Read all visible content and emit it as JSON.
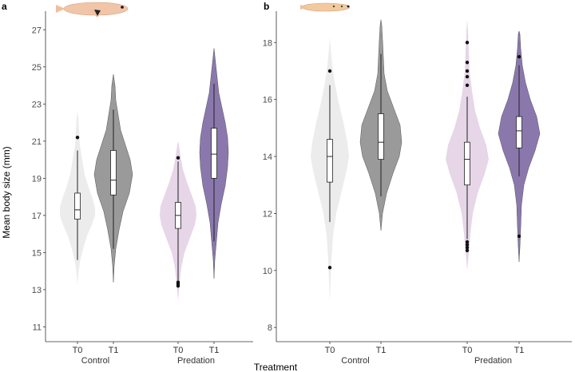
{
  "figure": {
    "ylabel": "Mean body size (mm)",
    "xlabel": "Treatment"
  },
  "colors": {
    "control_t0": "#ececec",
    "control_t1": "#9a9a9a",
    "predation_t0": "#e6d6e8",
    "predation_t1": "#8a78ad",
    "axis": "#333333",
    "fish_a_body": "#f1c5a8",
    "fish_b_body": "#f3c9a0"
  },
  "chart_data": [
    {
      "panel": "a",
      "type": "violin",
      "ylim": [
        10.2,
        28
      ],
      "yticks": [
        11,
        13,
        15,
        17,
        19,
        21,
        23,
        25,
        27
      ],
      "groups": [
        "Control",
        "Predation"
      ],
      "timepoints": [
        "T0",
        "T1"
      ],
      "series": [
        {
          "group": "Control",
          "time": "T0",
          "color_key": "control_t0",
          "violin": [
            [
              13.2,
              0
            ],
            [
              13.8,
              1
            ],
            [
              14.5,
              3
            ],
            [
              15.2,
              7
            ],
            [
              15.9,
              12
            ],
            [
              16.5,
              18
            ],
            [
              17.0,
              22
            ],
            [
              17.4,
              22
            ],
            [
              17.9,
              19
            ],
            [
              18.5,
              14
            ],
            [
              19.2,
              9
            ],
            [
              20.0,
              6
            ],
            [
              20.8,
              3
            ],
            [
              21.6,
              2
            ],
            [
              22.3,
              1
            ],
            [
              22.6,
              0
            ]
          ],
          "box": {
            "q1": 16.8,
            "median": 17.3,
            "q3": 18.2,
            "wlo": 14.6,
            "whi": 20.5
          },
          "outliers": [
            21.2
          ]
        },
        {
          "group": "Control",
          "time": "T1",
          "color_key": "control_t1",
          "violin": [
            [
              13.4,
              0
            ],
            [
              14.3,
              1
            ],
            [
              15.2,
              3
            ],
            [
              16.2,
              7
            ],
            [
              17.2,
              12
            ],
            [
              18.2,
              20
            ],
            [
              19.2,
              24
            ],
            [
              20.0,
              21
            ],
            [
              20.8,
              15
            ],
            [
              21.6,
              9
            ],
            [
              22.4,
              6
            ],
            [
              23.2,
              3
            ],
            [
              24.0,
              2
            ],
            [
              24.6,
              0
            ]
          ],
          "box": {
            "q1": 18.1,
            "median": 18.9,
            "q3": 20.5,
            "wlo": 15.2,
            "whi": 22.7
          },
          "outliers": []
        },
        {
          "group": "Predation",
          "time": "T0",
          "color_key": "predation_t0",
          "violin": [
            [
              12.4,
              0
            ],
            [
              12.9,
              1
            ],
            [
              13.4,
              2
            ],
            [
              14.2,
              4
            ],
            [
              15.0,
              8
            ],
            [
              15.8,
              15
            ],
            [
              16.5,
              21
            ],
            [
              17.0,
              23
            ],
            [
              17.5,
              22
            ],
            [
              18.1,
              17
            ],
            [
              18.8,
              11
            ],
            [
              19.5,
              6
            ],
            [
              20.2,
              3
            ],
            [
              20.8,
              1
            ],
            [
              21.0,
              0
            ]
          ],
          "box": {
            "q1": 16.3,
            "median": 17.0,
            "q3": 17.7,
            "wlo": 13.5,
            "whi": 19.9
          },
          "outliers": [
            13.2,
            13.3,
            13.4,
            20.1
          ]
        },
        {
          "group": "Predation",
          "time": "T1",
          "color_key": "predation_t1",
          "violin": [
            [
              13.6,
              0
            ],
            [
              14.6,
              1
            ],
            [
              15.6,
              3
            ],
            [
              16.6,
              5
            ],
            [
              17.6,
              9
            ],
            [
              18.6,
              14
            ],
            [
              19.6,
              17
            ],
            [
              20.4,
              18
            ],
            [
              21.2,
              17
            ],
            [
              22.0,
              14
            ],
            [
              22.8,
              10
            ],
            [
              23.6,
              6
            ],
            [
              24.4,
              4
            ],
            [
              25.2,
              2
            ],
            [
              26.0,
              0
            ]
          ],
          "box": {
            "q1": 19.0,
            "median": 20.3,
            "q3": 21.7,
            "wlo": 15.6,
            "whi": 24.1
          },
          "outliers": []
        }
      ]
    },
    {
      "panel": "b",
      "type": "violin",
      "ylim": [
        7.5,
        19.1
      ],
      "yticks": [
        8,
        10,
        12,
        14,
        16,
        18
      ],
      "groups": [
        "Control",
        "Predation"
      ],
      "timepoints": [
        "T0",
        "T1"
      ],
      "series": [
        {
          "group": "Control",
          "time": "T0",
          "color_key": "control_t0",
          "violin": [
            [
              8.9,
              0
            ],
            [
              9.6,
              1
            ],
            [
              10.4,
              2
            ],
            [
              11.2,
              4
            ],
            [
              12.0,
              8
            ],
            [
              12.8,
              15
            ],
            [
              13.5,
              21
            ],
            [
              14.0,
              24
            ],
            [
              14.5,
              22
            ],
            [
              15.2,
              17
            ],
            [
              15.9,
              11
            ],
            [
              16.6,
              6
            ],
            [
              17.2,
              3
            ],
            [
              17.8,
              1
            ],
            [
              18.2,
              0
            ]
          ],
          "box": {
            "q1": 13.1,
            "median": 14.0,
            "q3": 14.6,
            "wlo": 11.7,
            "whi": 16.5
          },
          "outliers": [
            10.1,
            17.0
          ]
        },
        {
          "group": "Control",
          "time": "T1",
          "color_key": "control_t1",
          "violin": [
            [
              11.4,
              0
            ],
            [
              12.0,
              2
            ],
            [
              12.7,
              7
            ],
            [
              13.4,
              15
            ],
            [
              14.0,
              23
            ],
            [
              14.5,
              26
            ],
            [
              15.1,
              24
            ],
            [
              15.7,
              16
            ],
            [
              16.3,
              8
            ],
            [
              16.9,
              4
            ],
            [
              17.5,
              3
            ],
            [
              18.1,
              2
            ],
            [
              18.6,
              1
            ],
            [
              18.8,
              0
            ]
          ],
          "box": {
            "q1": 13.9,
            "median": 14.5,
            "q3": 15.5,
            "wlo": 12.6,
            "whi": 17.6
          },
          "outliers": []
        },
        {
          "group": "Predation",
          "time": "T0",
          "color_key": "predation_t0",
          "violin": [
            [
              10.0,
              0
            ],
            [
              10.6,
              2
            ],
            [
              11.3,
              4
            ],
            [
              12.0,
              7
            ],
            [
              12.7,
              13
            ],
            [
              13.4,
              22
            ],
            [
              13.9,
              27
            ],
            [
              14.4,
              24
            ],
            [
              15.0,
              16
            ],
            [
              15.6,
              10
            ],
            [
              16.3,
              6
            ],
            [
              17.0,
              3
            ],
            [
              17.7,
              2
            ],
            [
              18.4,
              1
            ],
            [
              18.8,
              0
            ]
          ],
          "box": {
            "q1": 13.0,
            "median": 13.9,
            "q3": 14.5,
            "wlo": 11.1,
            "whi": 16.1
          },
          "outliers": [
            10.7,
            10.8,
            10.9,
            11.0,
            16.5,
            16.8,
            17.0,
            17.3,
            18.0
          ]
        },
        {
          "group": "Predation",
          "time": "T1",
          "color_key": "predation_t1",
          "violin": [
            [
              10.3,
              0
            ],
            [
              10.8,
              1
            ],
            [
              11.5,
              2
            ],
            [
              12.3,
              3
            ],
            [
              13.0,
              6
            ],
            [
              13.6,
              12
            ],
            [
              14.2,
              20
            ],
            [
              14.8,
              26
            ],
            [
              15.4,
              22
            ],
            [
              16.0,
              14
            ],
            [
              16.6,
              8
            ],
            [
              17.2,
              4
            ],
            [
              17.8,
              2
            ],
            [
              18.3,
              1
            ],
            [
              18.4,
              0
            ]
          ],
          "box": {
            "q1": 14.3,
            "median": 14.9,
            "q3": 15.4,
            "wlo": 13.3,
            "whi": 17.2
          },
          "outliers": [
            11.2,
            17.5
          ]
        }
      ]
    }
  ]
}
